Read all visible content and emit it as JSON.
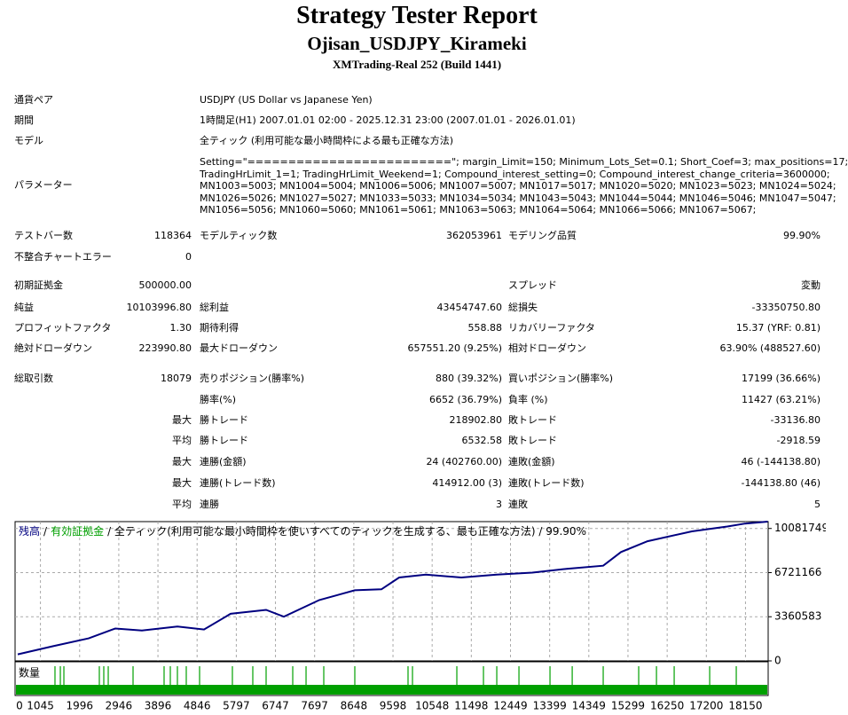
{
  "header": {
    "title": "Strategy Tester Report",
    "subtitle": "Ojisan_USDJPY_Kirameki",
    "server": "XMTrading-Real 252 (Build 1441)"
  },
  "info": [
    [
      "通貨ペア",
      "USDJPY (US Dollar vs Japanese Yen)"
    ],
    [
      "期間",
      "1時間足(H1) 2007.01.01 02:00 - 2025.12.31 23:00 (2007.01.01 - 2026.01.01)"
    ],
    [
      "モデル",
      "全ティック (利用可能な最小時間枠による最も正確な方法)"
    ]
  ],
  "parameters": {
    "label": "パラメーター",
    "lines": [
      "Setting=\"=========================\"; margin_Limit=150; Minimum_Lots_Set=0.1; Short_Coef=3; max_positions=17;",
      "TradingHrLimit_1=1; TradingHrLimit_Weekend=1; Compound_interest_setting=0; Compound_interest_change_criteria=3600000;",
      "MN1003=5003; MN1004=5004; MN1006=5006; MN1007=5007; MN1017=5017; MN1020=5020; MN1023=5023; MN1024=5024;",
      "MN1026=5026; MN1027=5027; MN1033=5033; MN1034=5034; MN1043=5043; MN1044=5044; MN1046=5046; MN1047=5047;",
      "MN1056=5056; MN1060=5060; MN1061=5061; MN1063=5063; MN1064=5064; MN1066=5066; MN1067=5067;"
    ]
  },
  "stats": [
    [
      "テストバー数",
      "118364",
      "モデルティック数",
      "362053961",
      "モデリング品質",
      "99.90%"
    ],
    [
      "不整合チャートエラー",
      "0",
      null,
      null,
      null,
      null
    ],
    [
      "初期証拠金",
      "500000.00",
      null,
      null,
      "スプレッド",
      "変動"
    ],
    [
      "純益",
      "10103996.80",
      "総利益",
      "43454747.60",
      "総損失",
      "-33350750.80"
    ],
    [
      "プロフィットファクタ",
      "1.30",
      "期待利得",
      "558.88",
      "リカバリーファクタ",
      "15.37 (YRF: 0.81)"
    ],
    [
      "絶対ドローダウン",
      "223990.80",
      "最大ドローダウン",
      "657551.20 (9.25%)",
      "相対ドローダウン",
      "63.90% (488527.60)"
    ],
    [
      "総取引数",
      "18079",
      "売りポジション(勝率%)",
      "880 (39.32%)",
      "買いポジション(勝率%)",
      "17199 (36.66%)"
    ],
    [
      null,
      null,
      "勝率(%)",
      "6652 (36.79%)",
      "負率 (%)",
      "11427 (63.21%)"
    ],
    [
      null,
      "最大",
      "勝トレード",
      "218902.80",
      "敗トレード",
      "-33136.80"
    ],
    [
      null,
      "平均",
      "勝トレード",
      "6532.58",
      "敗トレード",
      "-2918.59"
    ],
    [
      null,
      "最大",
      "連勝(金額)",
      "24 (402760.00)",
      "連敗(金額)",
      "46 (-144138.80)"
    ],
    [
      null,
      "最大",
      "連勝(トレード数)",
      "414912.00 (3)",
      "連敗(トレード数)",
      "-144138.80 (46)"
    ],
    [
      null,
      "平均",
      "連勝",
      "3",
      "連敗",
      "5"
    ]
  ],
  "chart_data": {
    "type": "line",
    "legend_separator": "/",
    "caption": "/ 全ティック(利用可能な最小時間枠を使いすべてのティックを生成する、最も正確な方法) / 99.90%",
    "series": [
      {
        "name": "残高",
        "color": "#000080",
        "x": [
          495,
          1355,
          2216,
          2862,
          3507,
          4368,
          5014,
          5659,
          6520,
          6951,
          7811,
          8672,
          9318,
          9748,
          10394,
          11255,
          12116,
          12977,
          13838,
          14698,
          15129,
          15774,
          16850,
          17711,
          18141,
          18690
        ],
        "values": [
          500000,
          1120000,
          1717000,
          2464000,
          2315000,
          2614000,
          2390000,
          3585000,
          3883000,
          3361000,
          4630000,
          5377000,
          5452000,
          6348000,
          6572000,
          6348000,
          6572000,
          6721000,
          7020000,
          7244000,
          8289000,
          9111000,
          9858000,
          10231000,
          10455000,
          10603996.8
        ]
      },
      {
        "name": "有効証拠金",
        "color": "#00a000"
      }
    ],
    "xlim": [
      430,
      18700
    ],
    "xticks": [
      0,
      1045,
      1996,
      2946,
      3896,
      4846,
      5797,
      6747,
      7697,
      8648,
      9598,
      10548,
      11498,
      12449,
      13399,
      14349,
      15299,
      16250,
      17200,
      18150
    ],
    "ylim": [
      0,
      10603996.8
    ],
    "yticks": [
      0,
      3360583,
      6721166,
      10081749
    ],
    "grid": true,
    "volume": {
      "label": "数量",
      "color": "#00a000",
      "x": [
        1398,
        1528,
        1614,
        2474,
        2582,
        2690,
        3292,
        4045,
        4196,
        4368,
        4583,
        4906,
        5702,
        6197,
        6520,
        7166,
        7489,
        7919,
        8672,
        9963,
        10071,
        11147,
        11793,
        12116,
        12654,
        13407,
        13946,
        14698,
        15559,
        15990,
        16420,
        17281,
        17926
      ]
    }
  }
}
